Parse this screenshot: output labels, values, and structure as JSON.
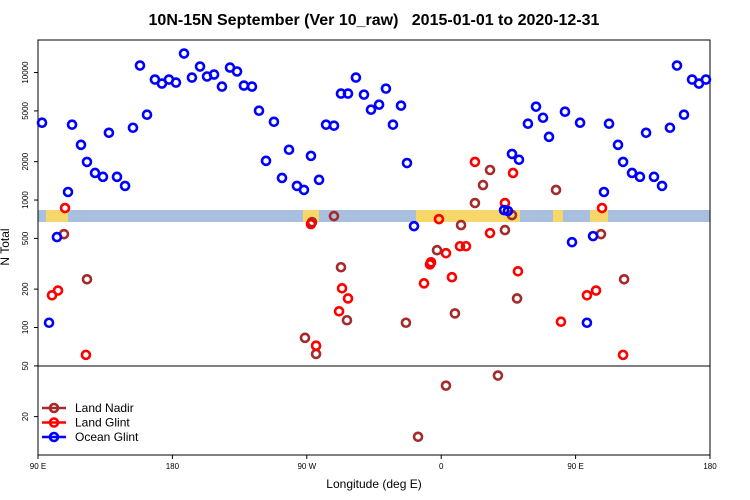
{
  "chart_data": {
    "type": "scatter",
    "title": "10N-15N September (Ver 10_raw)   2015-01-01 to 2020-12-31",
    "x_label": "Longitude (deg E)",
    "y_label": "N Total",
    "xlim": [
      90,
      540
    ],
    "xticks": [
      {
        "value": 90,
        "label": "90 E"
      },
      {
        "value": 180,
        "label": "180"
      },
      {
        "value": 270,
        "label": "90 W"
      },
      {
        "value": 360,
        "label": "0"
      },
      {
        "value": 450,
        "label": "90 E"
      },
      {
        "value": 540,
        "label": "180"
      }
    ],
    "ylim": [
      10,
      18000
    ],
    "y_log": true,
    "yticks": [
      20,
      50,
      100,
      200,
      500,
      1000,
      2000,
      5000,
      10000
    ],
    "legend": "bottom-left",
    "series": [
      {
        "name": "Land Nadir",
        "color": "#a52a2a",
        "x": [
          107.4,
          122.8,
          268.8,
          273.5,
          276.2,
          288.2,
          292.9,
          296.9,
          336.4,
          344.5,
          357.2,
          363.2,
          369.2,
          373.3,
          382.6,
          388.0,
          392.7,
          398.0,
          402.7,
          407.4,
          410.8,
          436.9,
          467.0,
          482.5
        ],
        "values": [
          540,
          239,
          83,
          671,
          62,
          748,
          297,
          114,
          109,
          13.9,
          404,
          35,
          129,
          636,
          947,
          1310,
          1720,
          42,
          581,
          762,
          169,
          1200,
          540,
          239
        ]
      },
      {
        "name": "Land Glint",
        "color": "#ff0000",
        "x": [
          99.4,
          103.4,
          108.1,
          122.1,
          272.8,
          276.2,
          293.6,
          291.6,
          297.6,
          348.5,
          352.5,
          353.2,
          358.5,
          363.2,
          367.2,
          372.6,
          376.6,
          382.6,
          392.7,
          402.7,
          408.1,
          411.4,
          440.2,
          457.6,
          463.7,
          467.7,
          481.8
        ],
        "values": [
          179,
          195,
          865,
          61,
          647,
          72,
          203,
          134,
          169,
          222,
          313,
          325,
          708,
          383,
          248,
          434,
          434,
          1990,
          550,
          947,
          1630,
          276,
          111,
          179,
          195,
          865,
          61
        ]
      },
      {
        "name": "Ocean Glint",
        "color": "#0000ff",
        "x": [
          92.7,
          102.7,
          110.1,
          112.8,
          118.8,
          122.8,
          128.2,
          133.5,
          137.5,
          142.9,
          148.3,
          153.6,
          158.3,
          163.0,
          168.3,
          173.0,
          177.7,
          182.4,
          187.8,
          193.1,
          198.5,
          203.2,
          207.9,
          213.2,
          218.6,
          223.3,
          227.9,
          233.3,
          238.0,
          242.7,
          248.0,
          253.4,
          258.1,
          263.4,
          268.1,
          272.8,
          278.2,
          282.9,
          288.2,
          292.9,
          297.6,
          302.9,
          308.3,
          313.0,
          318.4,
          323.0,
          327.7,
          333.1,
          337.1,
          341.8,
          97.4,
          402.1,
          404.7,
          407.4,
          412.1,
          418.1,
          423.5,
          428.2,
          432.2,
          442.9,
          447.6,
          453.0,
          457.6,
          461.7,
          469.0,
          472.4,
          478.4,
          481.8,
          487.8,
          493.1,
          497.2,
          502.5,
          507.9,
          513.2,
          517.9,
          522.6,
          528.0,
          532.6,
          537.3
        ],
        "values": [
          4040,
          512,
          1156,
          3900,
          2710,
          1990,
          1630,
          1520,
          3370,
          1520,
          1290,
          3690,
          11350,
          4670,
          8810,
          8190,
          8810,
          8340,
          14100,
          9130,
          11150,
          9310,
          9640,
          7760,
          10940,
          10190,
          7900,
          7760,
          5020,
          2030,
          4110,
          1490,
          2480,
          1290,
          1200,
          2220,
          1440,
          3900,
          3830,
          6840,
          6840,
          9130,
          6710,
          5110,
          5600,
          7480,
          3900,
          5500,
          1950,
          624,
          109,
          834,
          820,
          2300,
          2070,
          3970,
          5400,
          4420,
          3130,
          4930,
          467,
          4040,
          109,
          521,
          1156,
          3970,
          2710,
          1990,
          1630,
          1520,
          3370,
          1520,
          1290,
          3690,
          11350,
          4670,
          8810,
          8190,
          8810
        ]
      }
    ]
  }
}
